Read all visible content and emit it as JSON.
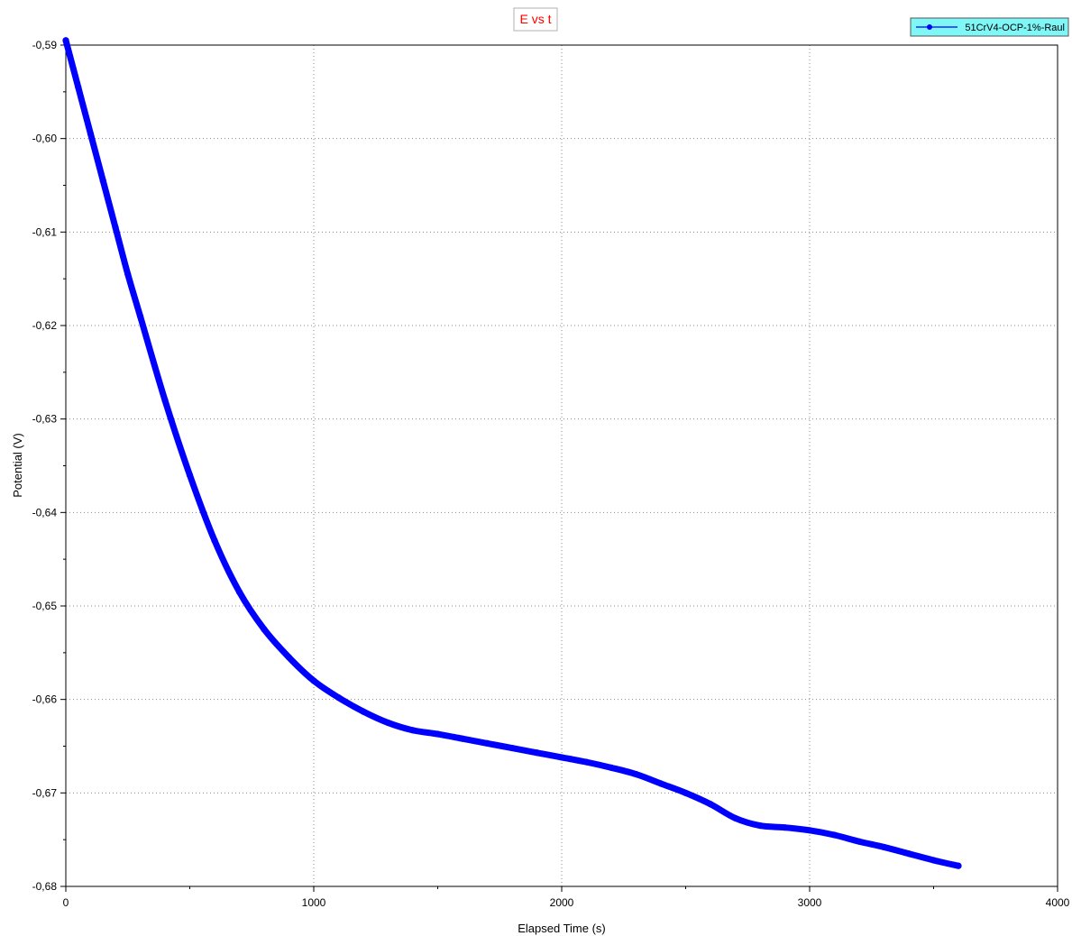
{
  "chart_data": {
    "type": "line",
    "title": "E vs t",
    "xlabel": "Elapsed Time (s)",
    "ylabel": "Potential (V)",
    "xlim": [
      0,
      4000
    ],
    "ylim": [
      -0.68,
      -0.59
    ],
    "x_ticks": [
      0,
      1000,
      2000,
      3000,
      4000
    ],
    "x_tick_labels": [
      "0",
      "1000",
      "2000",
      "3000",
      "4000"
    ],
    "y_ticks": [
      -0.59,
      -0.6,
      -0.61,
      -0.62,
      -0.63,
      -0.64,
      -0.65,
      -0.66,
      -0.67,
      -0.68
    ],
    "y_tick_labels": [
      "-0,59",
      "-0,60",
      "-0,61",
      "-0,62",
      "-0,63",
      "-0,64",
      "-0,65",
      "-0,66",
      "-0,67",
      "-0,68"
    ],
    "grid": true,
    "legend_position": "top-right",
    "colors": {
      "series": "#0000ff",
      "title": "#ff0000",
      "legend_bg": "#7ff7f7",
      "grid": "#8a8a8a"
    },
    "series": [
      {
        "name": "51CrV4-OCP-1%-Raul",
        "x": [
          0,
          50,
          100,
          150,
          200,
          250,
          300,
          400,
          500,
          600,
          700,
          800,
          900,
          1000,
          1100,
          1200,
          1300,
          1400,
          1500,
          1600,
          1700,
          1800,
          1900,
          2000,
          2100,
          2200,
          2300,
          2400,
          2500,
          2600,
          2700,
          2800,
          2900,
          3000,
          3100,
          3200,
          3300,
          3400,
          3500,
          3600
        ],
        "y": [
          -0.5895,
          -0.5945,
          -0.5995,
          -0.6045,
          -0.6095,
          -0.6145,
          -0.619,
          -0.628,
          -0.636,
          -0.643,
          -0.6485,
          -0.6525,
          -0.6555,
          -0.658,
          -0.6598,
          -0.6613,
          -0.6625,
          -0.6633,
          -0.6637,
          -0.6642,
          -0.6647,
          -0.6652,
          -0.6657,
          -0.6662,
          -0.6667,
          -0.6673,
          -0.668,
          -0.669,
          -0.67,
          -0.6712,
          -0.6727,
          -0.6735,
          -0.6737,
          -0.674,
          -0.6745,
          -0.6752,
          -0.6758,
          -0.6765,
          -0.6772,
          -0.6778
        ]
      }
    ]
  }
}
